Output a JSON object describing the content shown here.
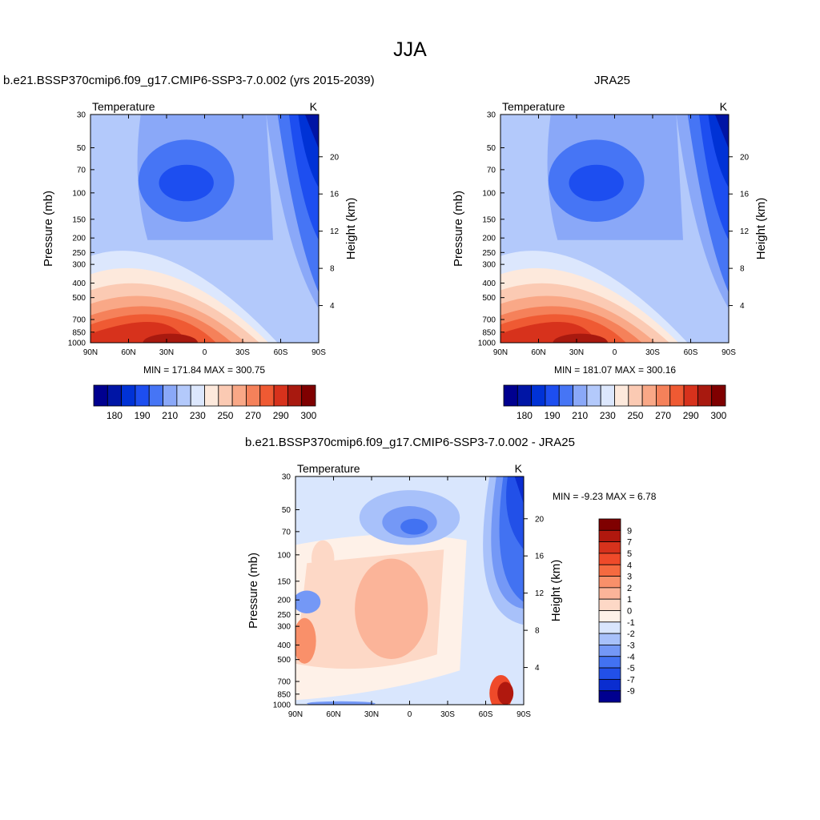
{
  "figure": {
    "title": "JJA"
  },
  "chart_data": [
    {
      "type": "heatmap",
      "title": "b.e21.BSSP370cmip6.f09_g17.CMIP6-SSP3-7.0.002 (yrs 2015-2039)",
      "subtitle_left": "Temperature",
      "subtitle_right": "K",
      "xlabel": "",
      "ylabel": "Pressure (mb)",
      "y2label": "Height (km)",
      "x_ticks": [
        "90N",
        "60N",
        "30N",
        "0",
        "30S",
        "60S",
        "90S"
      ],
      "y_ticks": [
        30,
        50,
        70,
        100,
        150,
        200,
        250,
        300,
        400,
        500,
        700,
        850,
        1000
      ],
      "y2_ticks": [
        4,
        8,
        12,
        16,
        20
      ],
      "y_scale": "log",
      "ylim": [
        1000,
        30
      ],
      "xlim": [
        "90N",
        "90S"
      ],
      "stats": "MIN = 171.84  MAX = 300.75",
      "colorbar": {
        "orientation": "horizontal",
        "labels": [
          "180",
          "190",
          "210",
          "230",
          "250",
          "270",
          "290",
          "300"
        ],
        "colors": [
          "#00008f",
          "#0015a5",
          "#0032d6",
          "#1d4ef0",
          "#4675f5",
          "#8aa8f8",
          "#b3c9fb",
          "#dce7fd",
          "#fde9dc",
          "#fbcab3",
          "#f9a887",
          "#f5815a",
          "#ef5a33",
          "#d7321c",
          "#a8190f",
          "#7f0000"
        ]
      }
    },
    {
      "type": "heatmap",
      "title": "JRA25",
      "subtitle_left": "Temperature",
      "subtitle_right": "K",
      "ylabel": "Pressure (mb)",
      "y2label": "Height (km)",
      "x_ticks": [
        "90N",
        "60N",
        "30N",
        "0",
        "30S",
        "60S",
        "90S"
      ],
      "y_ticks": [
        30,
        50,
        70,
        100,
        150,
        200,
        250,
        300,
        400,
        500,
        700,
        850,
        1000
      ],
      "y2_ticks": [
        4,
        8,
        12,
        16,
        20
      ],
      "y_scale": "log",
      "stats": "MIN = 181.07  MAX = 300.16",
      "colorbar": {
        "orientation": "horizontal",
        "labels": [
          "180",
          "190",
          "210",
          "230",
          "250",
          "270",
          "290",
          "300"
        ],
        "colors": [
          "#00008f",
          "#0015a5",
          "#0032d6",
          "#1d4ef0",
          "#4675f5",
          "#8aa8f8",
          "#b3c9fb",
          "#dce7fd",
          "#fde9dc",
          "#fbcab3",
          "#f9a887",
          "#f5815a",
          "#ef5a33",
          "#d7321c",
          "#a8190f",
          "#7f0000"
        ]
      }
    },
    {
      "type": "heatmap",
      "title": "b.e21.BSSP370cmip6.f09_g17.CMIP6-SSP3-7.0.002 - JRA25",
      "subtitle_left": "Temperature",
      "subtitle_right": "K",
      "ylabel": "Pressure (mb)",
      "y2label": "Height (km)",
      "x_ticks": [
        "90N",
        "60N",
        "30N",
        "0",
        "30S",
        "60S",
        "90S"
      ],
      "y_ticks": [
        30,
        50,
        70,
        100,
        150,
        200,
        250,
        300,
        400,
        500,
        700,
        850,
        1000
      ],
      "y2_ticks": [
        4,
        8,
        12,
        16,
        20
      ],
      "y_scale": "log",
      "stats": "MIN =  -9.23  MAX =   6.78",
      "colorbar": {
        "orientation": "vertical",
        "labels": [
          "9",
          "7",
          "5",
          "4",
          "3",
          "2",
          "1",
          "0",
          "-1",
          "-2",
          "-3",
          "-4",
          "-5",
          "-7",
          "-9"
        ],
        "colors": [
          "#7f0000",
          "#b0180e",
          "#d7321c",
          "#ef4a2a",
          "#f56a40",
          "#f9906a",
          "#fbb499",
          "#fdd8c6",
          "#fef1e8",
          "#d9e6fd",
          "#a8c1fa",
          "#7498f6",
          "#4272f2",
          "#2250e8",
          "#0a2dd0",
          "#00008f"
        ]
      }
    }
  ]
}
